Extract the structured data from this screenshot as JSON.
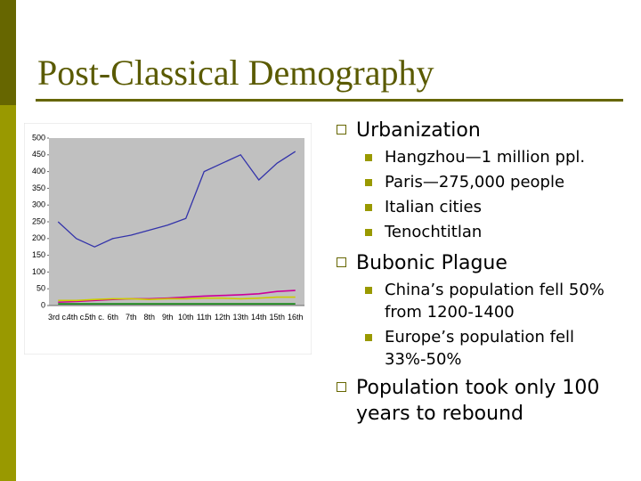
{
  "header": {
    "title": "Post-Classical Demography"
  },
  "chart_data": {
    "type": "line",
    "categories": [
      "3rd c.",
      "4th c.",
      "5th c.",
      "6th",
      "7th",
      "8th",
      "9th",
      "10th",
      "11th",
      "12th",
      "13th",
      "14th",
      "15th",
      "16th"
    ],
    "series": [
      {
        "color": "#3333aa",
        "values": [
          250,
          200,
          175,
          200,
          210,
          225,
          240,
          260,
          400,
          425,
          450,
          375,
          425,
          460
        ]
      },
      {
        "color": "#cc0099",
        "values": [
          10,
          12,
          15,
          18,
          20,
          20,
          22,
          25,
          28,
          30,
          32,
          35,
          42,
          45
        ]
      },
      {
        "color": "#cccc00",
        "values": [
          15,
          15,
          18,
          20,
          20,
          18,
          20,
          20,
          22,
          22,
          20,
          22,
          25,
          25
        ]
      },
      {
        "color": "#008000",
        "values": [
          5,
          5,
          5,
          5,
          5,
          5,
          5,
          5,
          5,
          5,
          5,
          5,
          5,
          5
        ]
      }
    ],
    "ylim": [
      0,
      500
    ],
    "yticks": [
      0,
      50,
      100,
      150,
      200,
      250,
      300,
      350,
      400,
      450,
      500
    ]
  },
  "bullets": [
    {
      "text": "Urbanization",
      "items": [
        "Hangzhou—1 million ppl.",
        "Paris—275,000 people",
        "Italian cities",
        "Tenochtitlan"
      ]
    },
    {
      "text": "Bubonic Plague",
      "items": [
        "China’s population fell 50% from 1200-1400",
        "Europe’s population fell 33%-50%"
      ]
    },
    {
      "text": "Population took only 100 years to rebound",
      "items": []
    }
  ]
}
